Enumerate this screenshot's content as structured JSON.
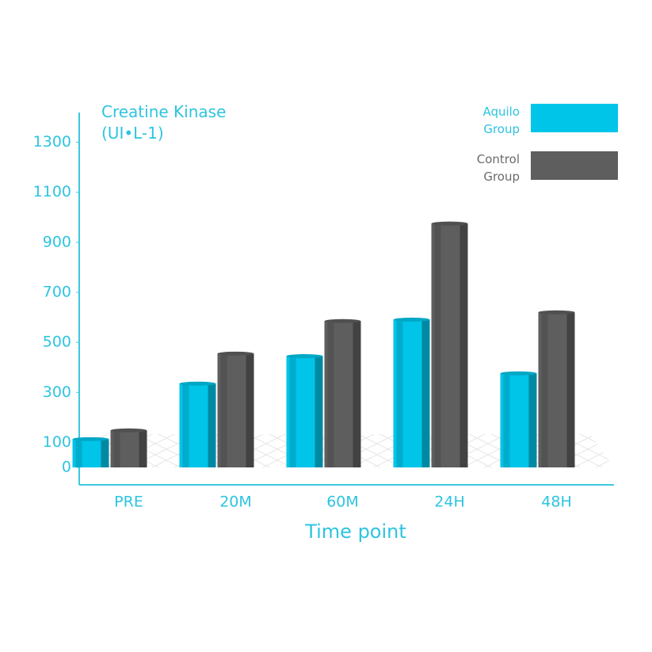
{
  "chart_data": {
    "type": "bar",
    "y_label": "Creatine Kinase (UI•L-1)",
    "x_label": "Time point",
    "categories": [
      "PRE",
      "20M",
      "60M",
      "24H",
      "48H"
    ],
    "series": [
      {
        "name": "Aquilo Group",
        "color": "#00c4e8",
        "values": [
          113,
          335,
          445,
          591,
          376
        ]
      },
      {
        "name": "Control Group",
        "color": "#5e5e5e",
        "values": [
          148,
          455,
          585,
          975,
          620
        ]
      }
    ],
    "ylim": [
      0,
      1400
    ],
    "yticks": [
      0,
      100,
      300,
      500,
      700,
      900,
      1100,
      1300
    ]
  }
}
